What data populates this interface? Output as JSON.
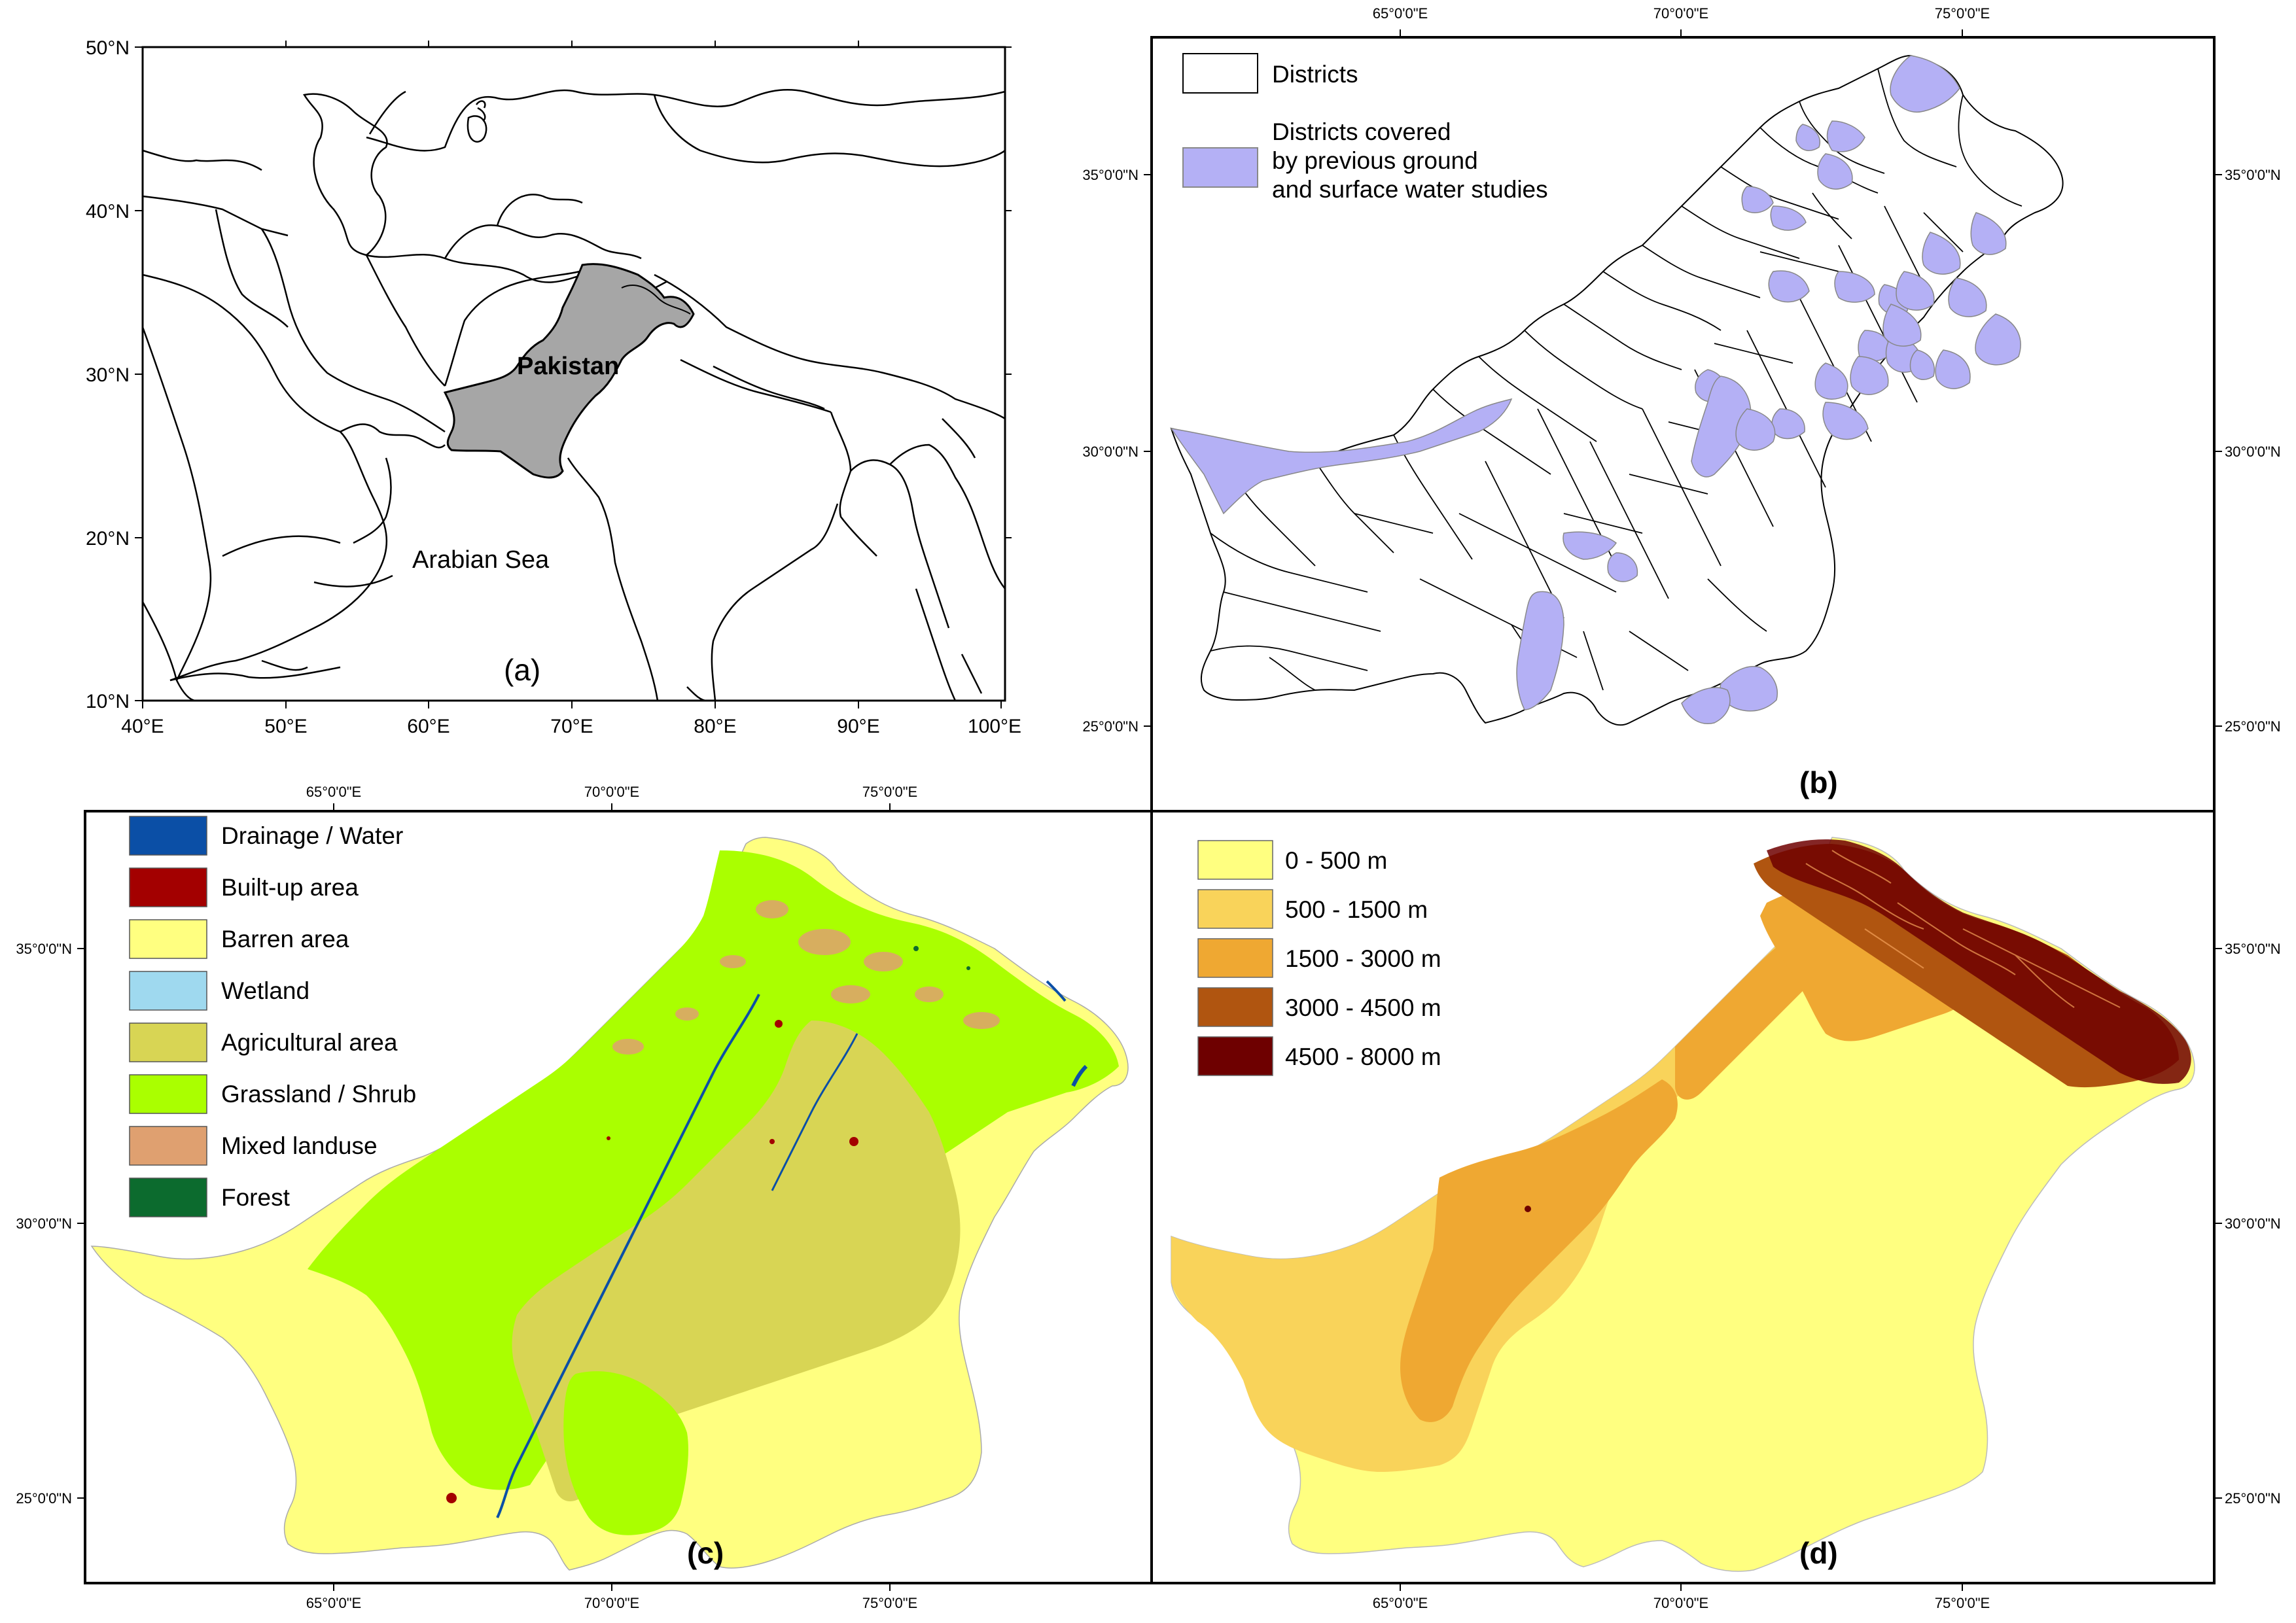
{
  "panel_a": {
    "label": "(a)",
    "country_label": "Pakistan",
    "sea_label": "Arabian Sea",
    "lat_ticks": [
      "50°N",
      "40°N",
      "30°N",
      "20°N",
      "10°N"
    ],
    "lon_ticks": [
      "40°E",
      "50°E",
      "60°E",
      "70°E",
      "80°E",
      "90°E",
      "100°E"
    ],
    "fill_color": "#a6a6a6"
  },
  "panel_b": {
    "label": "(b)",
    "top_ticks": [
      "65°0'0\"E",
      "70°0'0\"E",
      "75°0'0\"E"
    ],
    "lat_ticks": [
      "35°0'0\"N",
      "30°0'0\"N",
      "25°0'0\"N"
    ],
    "legend": [
      {
        "label": "Districts",
        "color": "#ffffff"
      },
      {
        "label": "Districts covered\nby previous ground\nand surface water studies",
        "color": "#b4b0f5"
      }
    ]
  },
  "panel_c": {
    "label": "(c)",
    "top_ticks": [
      "65°0'0\"E",
      "70°0'0\"E",
      "75°0'0\"E"
    ],
    "bottom_ticks": [
      "65°0'0\"E",
      "70°0'0\"E",
      "75°0'0\"E"
    ],
    "lat_ticks": [
      "35°0'0\"N",
      "30°0'0\"N",
      "25°0'0\"N"
    ],
    "legend": [
      {
        "label": "Drainage / Water",
        "color": "#0b4fa6"
      },
      {
        "label": "Built-up area",
        "color": "#a30000"
      },
      {
        "label": "Barren area",
        "color": "#ffff80"
      },
      {
        "label": "Wetland",
        "color": "#9fd9ef"
      },
      {
        "label": "Agricultural area",
        "color": "#d8d554"
      },
      {
        "label": "Grassland / Shrub",
        "color": "#aaff00"
      },
      {
        "label": "Mixed landuse",
        "color": "#dfa070"
      },
      {
        "label": "Forest",
        "color": "#0c6b2e"
      }
    ]
  },
  "panel_d": {
    "label": "(d)",
    "bottom_ticks": [
      "65°0'0\"E",
      "70°0'0\"E",
      "75°0'0\"E"
    ],
    "lat_ticks": [
      "35°0'0\"N",
      "30°0'0\"N",
      "25°0'0\"N"
    ],
    "legend": [
      {
        "label": "0 - 500 m",
        "color": "#ffff80"
      },
      {
        "label": "500 - 1500 m",
        "color": "#f9d35a"
      },
      {
        "label": "1500 - 3000 m",
        "color": "#efa832"
      },
      {
        "label": "3000 - 4500 m",
        "color": "#b05510"
      },
      {
        "label": "4500 - 8000 m",
        "color": "#6e0000"
      }
    ]
  }
}
